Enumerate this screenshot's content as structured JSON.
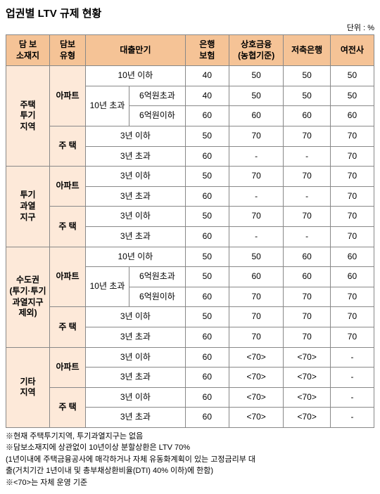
{
  "title": "업권별 LTV 규제 현황",
  "unit": "단위 : %",
  "headers": {
    "c1": "담 보\n소재지",
    "c2": "담보\n유형",
    "c3": "대출만기",
    "c4": "은행\n보험",
    "c5": "상호금융\n(농협기준)",
    "c6": "저축은행",
    "c7": "여전사"
  },
  "labels": {
    "reg1": "주택\n투기\n지역",
    "reg2": "투기\n과열\n지구",
    "reg3": "수도권\n(투기·투기\n과열지구\n제외)",
    "reg4": "기타\n지역",
    "apt": "아파트",
    "house": "주 택",
    "t10u": "10년 이하",
    "t10o": "10년 초과",
    "p6o": "6억원초과",
    "p6u": "6억원이하",
    "t3u": "3년 이하",
    "t3o": "3년 초과"
  },
  "d": {
    "r1": [
      "40",
      "50",
      "50",
      "50"
    ],
    "r2": [
      "40",
      "50",
      "50",
      "50"
    ],
    "r3": [
      "60",
      "60",
      "60",
      "60"
    ],
    "r4": [
      "50",
      "70",
      "70",
      "70"
    ],
    "r5": [
      "60",
      "-",
      "-",
      "70"
    ],
    "r6": [
      "50",
      "70",
      "70",
      "70"
    ],
    "r7": [
      "60",
      "-",
      "-",
      "70"
    ],
    "r8": [
      "50",
      "70",
      "70",
      "70"
    ],
    "r9": [
      "60",
      "-",
      "-",
      "70"
    ],
    "r10": [
      "50",
      "50",
      "60",
      "60"
    ],
    "r11": [
      "50",
      "60",
      "60",
      "60"
    ],
    "r12": [
      "60",
      "70",
      "70",
      "70"
    ],
    "r13": [
      "50",
      "70",
      "70",
      "70"
    ],
    "r14": [
      "60",
      "70",
      "70",
      "70"
    ],
    "r15": [
      "60",
      "<70>",
      "<70>",
      "-"
    ],
    "r16": [
      "60",
      "<70>",
      "<70>",
      "-"
    ],
    "r17": [
      "60",
      "<70>",
      "<70>",
      "-"
    ],
    "r18": [
      "60",
      "<70>",
      "<70>",
      "-"
    ]
  },
  "notes": [
    "※현재 주택투기지역, 투기과열지구는 없음",
    "※담보소재지에 상관없이 10년이상 분할상환은 LTV 70%",
    "(1년이내에 주택금융공사에 매각하거나 자체 유동화계획이 있는 고정금리부 대",
    "출(거치기간 1년이내 및 총부채상환비율(DTI) 40% 이하)에 한함)",
    "※<70>는 자체 운영 기준"
  ]
}
